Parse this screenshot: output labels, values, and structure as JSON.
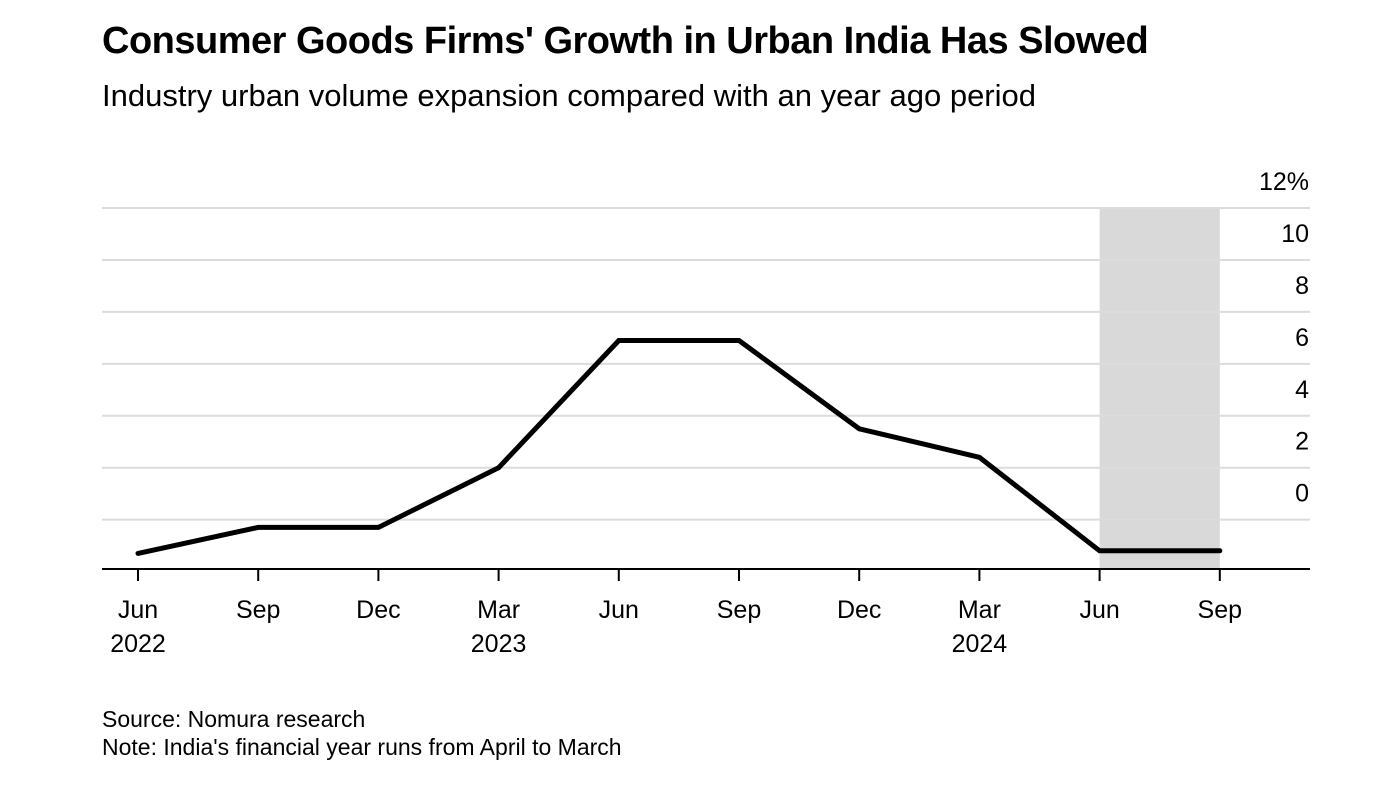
{
  "title": "Consumer Goods Firms' Growth in Urban India Has Slowed",
  "subtitle": "Industry urban volume expansion compared with an year ago period",
  "source": "Source: Nomura research",
  "note": "Note: India's financial year runs from April to March",
  "chart_data": {
    "type": "line",
    "title": "Consumer Goods Firms' Growth in Urban India Has Slowed",
    "subtitle": "Industry urban volume expansion compared with an year ago period",
    "x": [
      "Jun 2022",
      "Sep 2022",
      "Dec 2022",
      "Mar 2023",
      "Jun 2023",
      "Sep 2023",
      "Dec 2023",
      "Mar 2024",
      "Jun 2024",
      "Sep 2024"
    ],
    "x_tick_labels": [
      {
        "month": "Jun",
        "year": "2022"
      },
      {
        "month": "Sep",
        "year": ""
      },
      {
        "month": "Dec",
        "year": ""
      },
      {
        "month": "Mar",
        "year": "2023"
      },
      {
        "month": "Jun",
        "year": ""
      },
      {
        "month": "Sep",
        "year": ""
      },
      {
        "month": "Dec",
        "year": ""
      },
      {
        "month": "Mar",
        "year": "2024"
      },
      {
        "month": "Jun",
        "year": ""
      },
      {
        "month": "Sep",
        "year": ""
      }
    ],
    "series": [
      {
        "values": [
          -1.3,
          -0.3,
          -0.3,
          2.0,
          6.9,
          6.9,
          3.5,
          2.4,
          -1.2,
          -1.2
        ]
      }
    ],
    "ylim": [
      -1.9,
      12
    ],
    "y_ticks": [
      0,
      2,
      4,
      6,
      8,
      10,
      12
    ],
    "y_tick_labels": [
      "0",
      "2",
      "4",
      "6",
      "8",
      "10",
      "12%"
    ],
    "y_axis_side": "right",
    "grid": true,
    "shaded_region": {
      "from": "Jun 2024",
      "to": "Sep 2024",
      "color": "#d9d9d9"
    },
    "line_color": "#000000",
    "grid_color": "#dcdcdc"
  }
}
